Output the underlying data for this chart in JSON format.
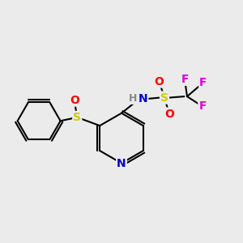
{
  "background_color": "#ebebeb",
  "bond_color": "#000000",
  "atom_colors": {
    "N": "#0000cc",
    "S": "#cccc00",
    "O": "#ff0000",
    "F": "#dd00dd",
    "H": "#888888",
    "C": "#000000"
  },
  "figsize": [
    3.0,
    3.0
  ],
  "dpi": 100
}
